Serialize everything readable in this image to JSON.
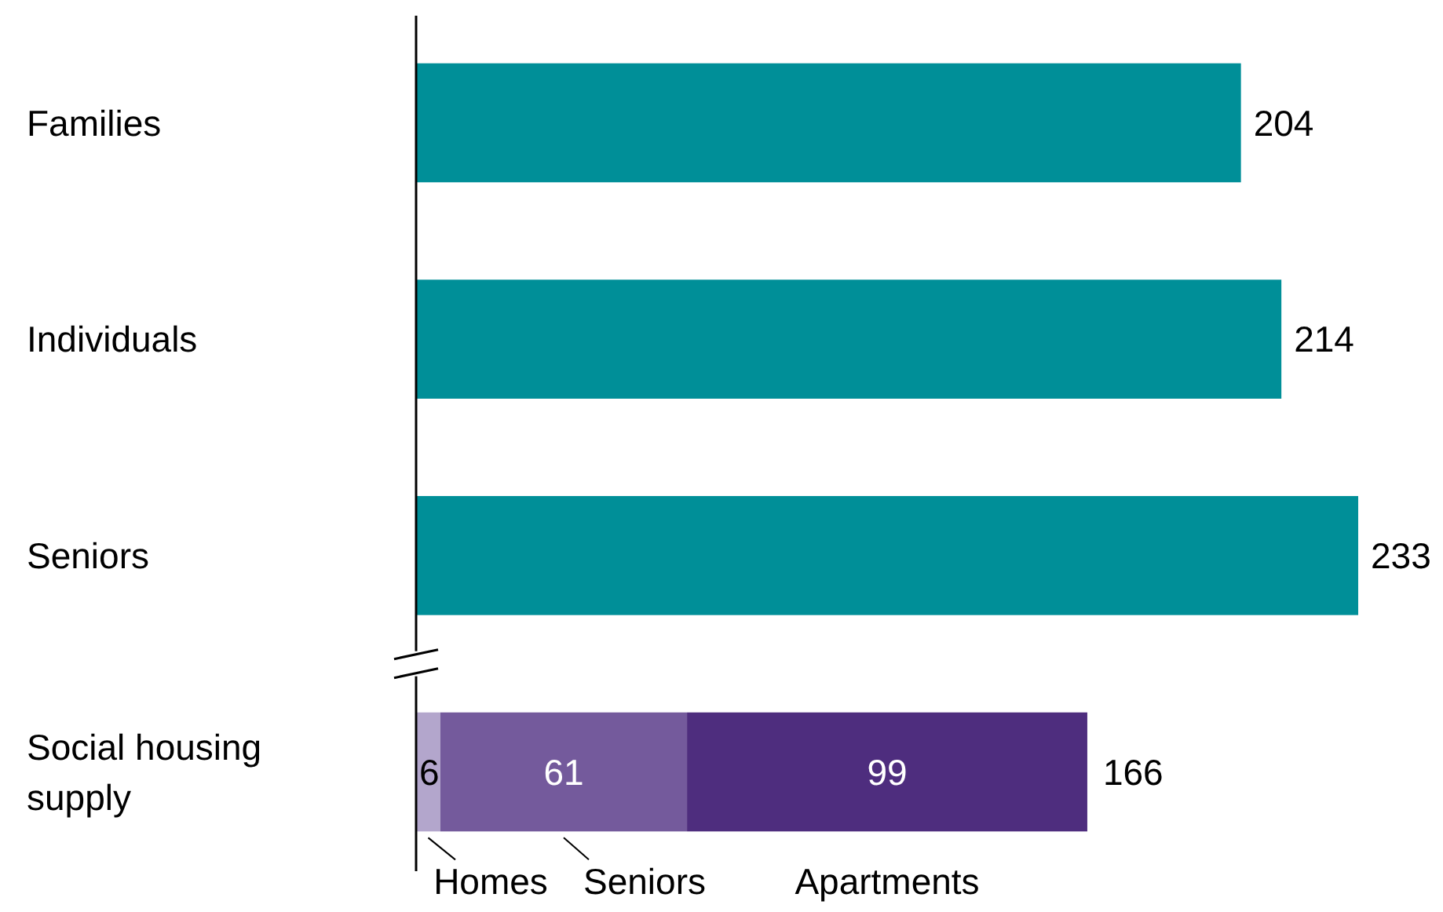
{
  "chart_data": {
    "type": "bar",
    "orientation": "horizontal",
    "stacked": true,
    "data_labels": true,
    "categories": [
      "Families",
      "Individuals",
      "Seniors",
      "Social housing supply"
    ],
    "series": [
      {
        "color": "#008f98",
        "values": [
          204,
          214,
          233,
          null
        ]
      },
      {
        "name": "Homes",
        "color": "#b3a6cc",
        "values": [
          null,
          null,
          null,
          6
        ]
      },
      {
        "name": "Seniors",
        "color": "#745a9c",
        "values": [
          null,
          null,
          null,
          61
        ]
      },
      {
        "name": "Apartments",
        "color": "#4e2d7e",
        "values": [
          null,
          null,
          null,
          99
        ]
      }
    ],
    "totals": [
      null,
      null,
      null,
      "166"
    ]
  }
}
